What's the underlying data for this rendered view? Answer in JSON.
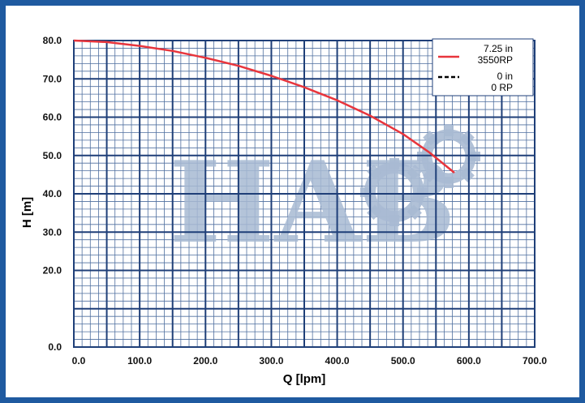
{
  "chart_data": {
    "type": "line",
    "xlabel": "Q [lpm]",
    "ylabel": "H [m]",
    "xlim": [
      0,
      700
    ],
    "ylim": [
      0,
      80
    ],
    "x_ticks": [
      "0.0",
      "100.0",
      "200.0",
      "300.0",
      "400.0",
      "500.0",
      "600.0",
      "700.0"
    ],
    "y_ticks": [
      "0.0",
      "20.0",
      "30.0",
      "40.0",
      "50.0",
      "60.0",
      "70.0",
      "80.0"
    ],
    "y_tick_values": [
      0,
      20,
      30,
      40,
      50,
      60,
      70,
      80
    ],
    "grid": true,
    "legend_position": "top-right",
    "series": [
      {
        "name": "7.25 in 3550RP",
        "legend_lines": [
          "7.25 in",
          "3550RP"
        ],
        "color": "#e8353c",
        "style": "solid",
        "x": [
          0,
          50,
          100,
          150,
          200,
          250,
          300,
          350,
          400,
          450,
          500,
          540,
          578
        ],
        "y": [
          80,
          79.6,
          78.6,
          77.3,
          75.5,
          73.4,
          70.8,
          67.8,
          64.4,
          60.4,
          55.6,
          50.8,
          45.5
        ]
      },
      {
        "name": "0 in 0 RP",
        "legend_lines": [
          "0 in",
          "0 RP"
        ],
        "color": "#000000",
        "style": "dashed",
        "x": [],
        "y": []
      }
    ],
    "watermark": "HABO"
  }
}
